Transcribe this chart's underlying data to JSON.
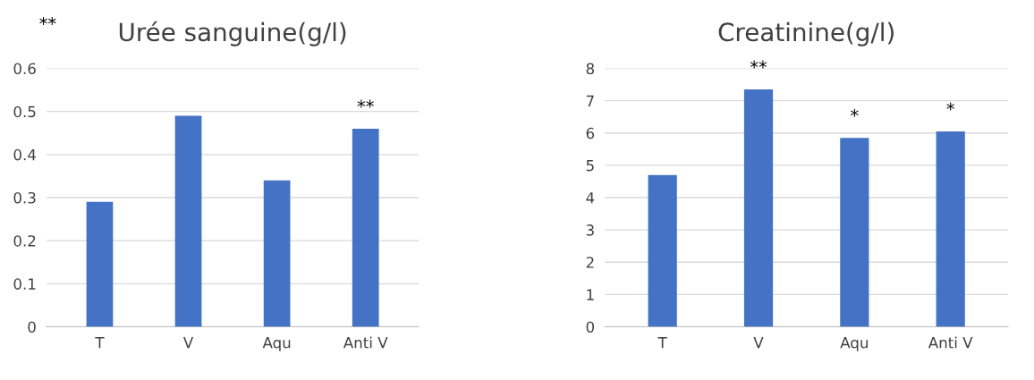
{
  "chart_data": [
    {
      "type": "bar",
      "title": "Urée sanguine(g/l)",
      "categories": [
        "T",
        "V",
        "Aqu",
        "Anti V"
      ],
      "values": [
        0.29,
        0.49,
        0.34,
        0.46
      ],
      "color": "#4472c4",
      "ylim": [
        0,
        0.6
      ],
      "yticks": [
        0,
        0.1,
        0.2,
        0.3,
        0.4,
        0.5,
        0.6
      ],
      "grid": "y",
      "annotations": [
        "**",
        {
          "text": "**",
          "x": "Anti V",
          "y": 0.46
        }
      ]
    },
    {
      "type": "bar",
      "title": "Creatinine(g/l)",
      "categories": [
        "T",
        "V",
        "Aqu",
        "Anti V"
      ],
      "values": [
        4.7,
        7.35,
        5.85,
        6.05
      ],
      "color": "#4472c4",
      "ylim": [
        0,
        8
      ],
      "yticks": [
        0,
        1,
        2,
        3,
        4,
        5,
        6,
        7,
        8
      ],
      "grid": "y",
      "annotations": [
        {
          "text": "**",
          "x": "V",
          "y": 7.35
        },
        {
          "text": "*",
          "x": "Aqu",
          "y": 5.85
        },
        {
          "text": "*",
          "x": "Anti V",
          "y": 6.05
        }
      ]
    }
  ]
}
